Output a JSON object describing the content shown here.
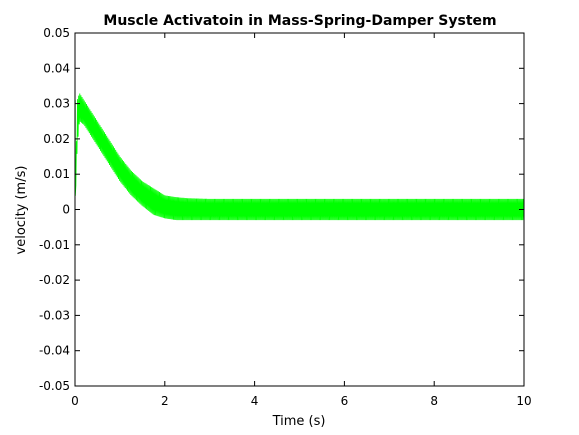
{
  "chart_data": {
    "type": "line",
    "title": "Muscle Activatoin in Mass-Spring-Damper System",
    "xlabel": "Time (s)",
    "ylabel": "velocity (m/s)",
    "xlim": [
      0,
      10
    ],
    "ylim": [
      -0.05,
      0.05
    ],
    "x_ticks": [
      0,
      2,
      4,
      6,
      8,
      10
    ],
    "x_tick_labels": [
      "0",
      "2",
      "4",
      "6",
      "8",
      "10"
    ],
    "y_ticks": [
      0.05,
      0.04,
      0.03,
      0.02,
      0.01,
      0,
      -0.01,
      -0.02,
      -0.03,
      -0.04,
      -0.05
    ],
    "y_tick_labels": [
      "0.05",
      "0.04",
      "0.03",
      "0.02",
      "0.01",
      "0",
      "-0.01",
      "-0.02",
      "-0.03",
      "-0.04",
      "-0.05"
    ],
    "grid": false,
    "series": [
      {
        "color": "#00ff00",
        "x": [
          0,
          0.05,
          0.1,
          0.2,
          0.3,
          0.5,
          0.75,
          1.0,
          1.25,
          1.5,
          1.75,
          2.0,
          2.25,
          2.5,
          3.0,
          4.0,
          5.0,
          6.0,
          7.0,
          8.0,
          9.0,
          10.0
        ],
        "upper": [
          0.0,
          0.031,
          0.033,
          0.031,
          0.029,
          0.025,
          0.02,
          0.015,
          0.011,
          0.008,
          0.006,
          0.004,
          0.0035,
          0.0032,
          0.003,
          0.003,
          0.003,
          0.003,
          0.003,
          0.003,
          0.003,
          0.003
        ],
        "lower": [
          0.0,
          0.018,
          0.025,
          0.024,
          0.022,
          0.018,
          0.013,
          0.008,
          0.004,
          0.001,
          -0.0015,
          -0.0025,
          -0.003,
          -0.003,
          -0.003,
          -0.003,
          -0.003,
          -0.003,
          -0.003,
          -0.003,
          -0.003,
          -0.003
        ]
      }
    ]
  }
}
